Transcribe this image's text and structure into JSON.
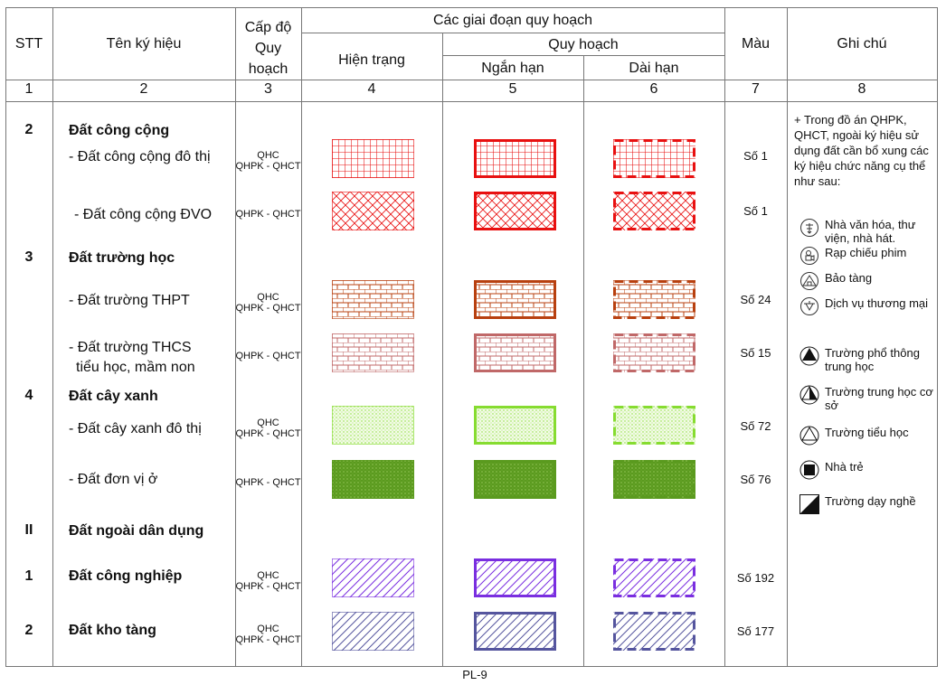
{
  "header": {
    "stt": "STT",
    "name": "Tên ký hiệu",
    "level_line1": "Cấp độ",
    "level_line2": "Quy",
    "level_line3": "hoạch",
    "stages": "Các giai đoạn quy hoạch",
    "current": "Hiện trạng",
    "planning": "Quy hoạch",
    "short_term": "Ngắn hạn",
    "long_term": "Dài hạn",
    "color": "Màu",
    "note": "Ghi chú"
  },
  "column_numbers": [
    "1",
    "2",
    "3",
    "4",
    "5",
    "6",
    "7",
    "8"
  ],
  "groups": [
    {
      "stt": "2",
      "name": "Đất công cộng"
    },
    {
      "stt": "3",
      "name": "Đất trường học"
    },
    {
      "stt": "4",
      "name": "Đất cây xanh"
    },
    {
      "stt": "II",
      "name": "Đất ngoài dân dụng"
    }
  ],
  "rows": [
    {
      "stt": "",
      "name": "- Đất công cộng đô thị",
      "level": [
        "QHC",
        "QHPK - QHCT"
      ],
      "color_code": "Số 1",
      "pattern": "grid",
      "color": "#e81010"
    },
    {
      "stt": "",
      "name": " - Đất công cộng ĐVO",
      "level": [
        "QHPK - QHCT"
      ],
      "color_code": "Số 1",
      "pattern": "diamond",
      "color": "#e81010"
    },
    {
      "stt": "",
      "name": "- Đất  trường THPT",
      "level": [
        "QHC",
        "QHPK - QHCT"
      ],
      "color_code": "Số 24",
      "pattern": "brick",
      "color": "#b8400f"
    },
    {
      "stt": "",
      "name": "- Đất  trường THCS",
      "name2": "  tiểu học, mầm non",
      "level": [
        "QHPK - QHCT"
      ],
      "color_code": "Số 15",
      "pattern": "brick",
      "color": "#c06868"
    },
    {
      "stt": "",
      "name": "- Đất  cây xanh đô thị",
      "level": [
        "QHC",
        "QHPK - QHCT"
      ],
      "color_code": "Số 72",
      "pattern": "dots",
      "color": "#86dc30"
    },
    {
      "stt": "",
      "name": "- Đất  đơn vị ở",
      "level": [
        "QHPK - QHCT"
      ],
      "color_code": "Số 76",
      "pattern": "dense",
      "color": "#5a9a1e"
    },
    {
      "stt": "1",
      "name": "Đất công nghiệp",
      "bold": true,
      "level": [
        "QHC",
        "QHPK - QHCT"
      ],
      "color_code": "Số 192",
      "pattern": "diagonal",
      "color": "#7a2ee0"
    },
    {
      "stt": "2",
      "name": "Đất kho tàng",
      "bold": true,
      "level": [
        "QHC",
        "QHPK - QHCT"
      ],
      "color_code": "Số 177",
      "pattern": "diagonal",
      "color": "#55559e"
    }
  ],
  "notes": {
    "intro": "+ Trong đồ án QHPK, QHCT, ngoài ký hiệu sử dụng đất cần bổ xung các ký hiệu chức năng cụ thể như sau:",
    "legend": [
      {
        "icon": "culture-house-icon",
        "label": "Nhà văn hóa, thư viện, nhà hát."
      },
      {
        "icon": "cinema-icon",
        "label": "Rạp chiếu phim"
      },
      {
        "icon": "museum-icon",
        "label": "Bảo tàng"
      },
      {
        "icon": "commerce-icon",
        "label": "Dịch vụ thương mại"
      },
      {
        "icon": "high-school-icon",
        "label": "Trường phổ thông trung học"
      },
      {
        "icon": "secondary-school-icon",
        "label": "Trường trung học cơ sở"
      },
      {
        "icon": "primary-school-icon",
        "label": "Trường tiểu học"
      },
      {
        "icon": "kindergarten-icon",
        "label": "Nhà trẻ"
      },
      {
        "icon": "vocational-school-icon",
        "label": "Trường dạy nghề"
      }
    ]
  },
  "footer": {
    "page": "PL-9"
  }
}
